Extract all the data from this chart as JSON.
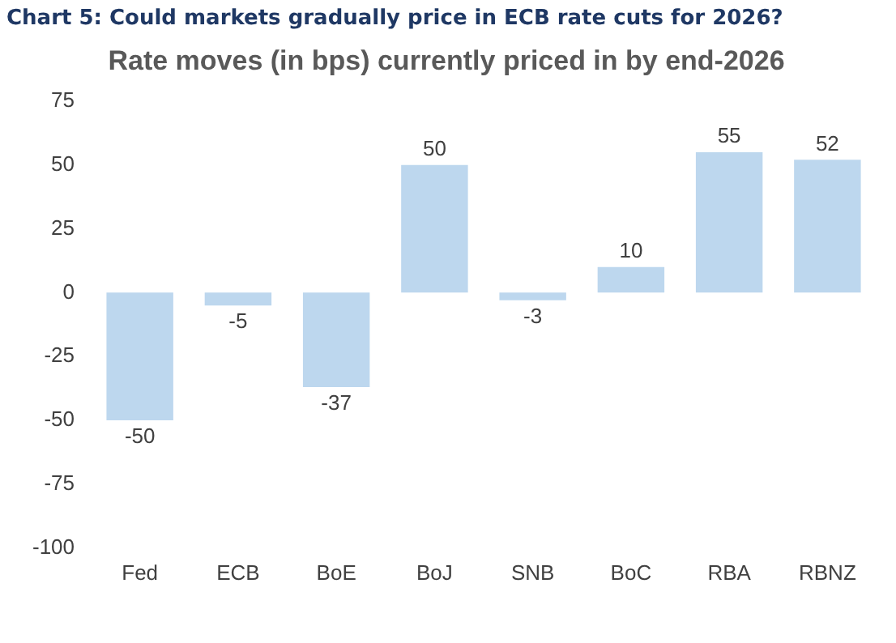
{
  "chart_data": {
    "type": "bar",
    "title": "Chart 5: Could markets gradually price in ECB rate cuts for 2026?",
    "subtitle": "Rate moves (in bps) currently priced in by end-2026",
    "categories": [
      "Fed",
      "ECB",
      "BoE",
      "BoJ",
      "SNB",
      "BoC",
      "RBA",
      "RBNZ"
    ],
    "values": [
      -50,
      -5,
      -37,
      50,
      -3,
      10,
      55,
      52
    ],
    "color": "#bdd7ee",
    "ylim": [
      -100,
      75
    ],
    "yticks": [
      -100,
      -75,
      -50,
      -25,
      0,
      25,
      50,
      75
    ],
    "grid": false,
    "data_labels": true,
    "legend": false
  }
}
